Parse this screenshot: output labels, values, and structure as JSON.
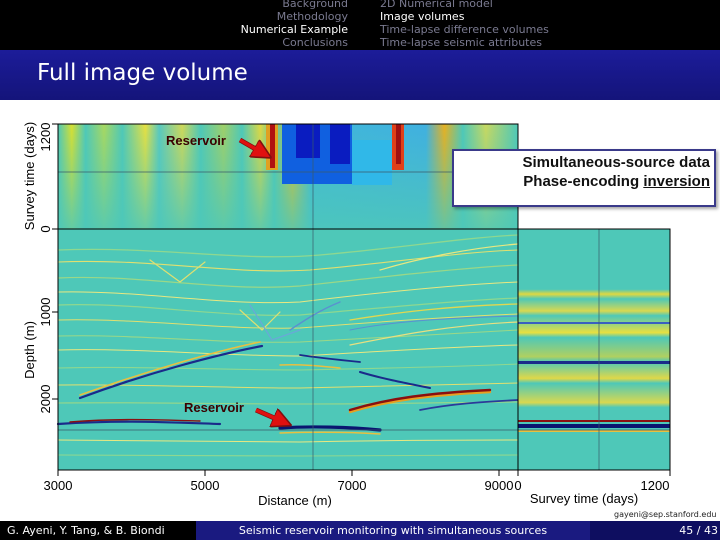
{
  "nav": {
    "sections": [
      "Background",
      "Methodology",
      "Numerical Example",
      "Conclusions"
    ],
    "active_section": 2,
    "subsections": [
      "2D Numerical model",
      "Image volumes",
      "Time-lapse difference volumes",
      "Time-lapse seismic attributes"
    ],
    "active_subsection": 1
  },
  "frame_title": "Full image volume",
  "figure": {
    "top_panel": {
      "ylabel": "Survey time (days)",
      "yticks": [
        "0",
        "1200"
      ]
    },
    "main_panel": {
      "ylabel": "Depth (m)",
      "yticks": [
        "1000",
        "2000"
      ],
      "xlabel": "Distance (m)",
      "xticks": [
        "3000",
        "5000",
        "7000",
        "9000"
      ]
    },
    "side_panel": {
      "xlabel": "Survey time (days)",
      "xticks": [
        "0",
        "1200"
      ]
    },
    "annotations": [
      "Reservoir",
      "Reservoir"
    ]
  },
  "callout": {
    "line1": "Simultaneous-source data",
    "line2_prefix": "Phase-encoding ",
    "line2_underlined": "inversion"
  },
  "footer": {
    "authors": "G. Ayeni, Y. Tang, & B. Biondi",
    "talk_title": "Seismic reservoir monitoring with simultaneous sources",
    "slide_number": "45 / 43"
  },
  "email": "gayeni@sep.stanford.edu",
  "colors": {
    "titlebar": "#1c1c99",
    "background_field": "#4ec8b8",
    "reservoir_blue": "#1a2a8a",
    "reservoir_red": "#8a1010",
    "arrow_red": "#e01010"
  }
}
